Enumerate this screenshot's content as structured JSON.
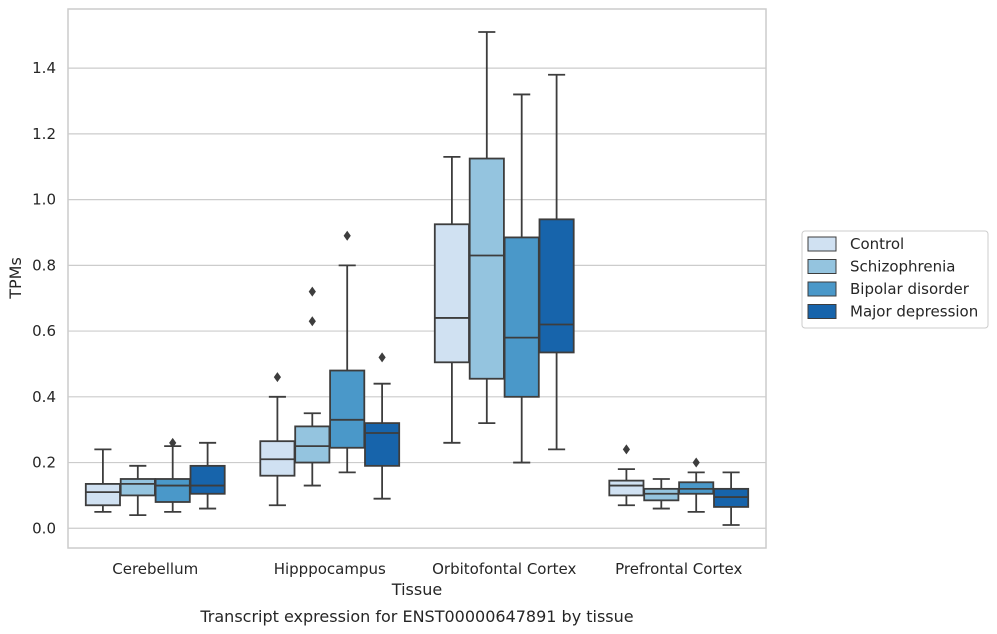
{
  "chart_data": {
    "type": "box",
    "caption": "Transcript expression for ENST00000647891 by tissue",
    "xlabel": "Tissue",
    "ylabel": "TPMs",
    "ylim": [
      -0.06,
      1.58
    ],
    "yticks": [
      0.0,
      0.2,
      0.4,
      0.6,
      0.8,
      1.0,
      1.2,
      1.4
    ],
    "ytick_labels": [
      "0.0",
      "0.2",
      "0.4",
      "0.6",
      "0.8",
      "1.0",
      "1.2",
      "1.4"
    ],
    "grid": true,
    "legend_position": "right",
    "categories": [
      "Cerebellum",
      "Hipppocampus",
      "Orbitofontal Cortex",
      "Prefrontal Cortex"
    ],
    "series": [
      {
        "name": "Control",
        "color": "#d0e1f2",
        "boxes": [
          {
            "min": 0.05,
            "q1": 0.07,
            "median": 0.11,
            "q3": 0.135,
            "max": 0.24,
            "outliers": []
          },
          {
            "min": 0.07,
            "q1": 0.16,
            "median": 0.21,
            "q3": 0.265,
            "max": 0.4,
            "outliers": [
              0.46
            ]
          },
          {
            "min": 0.26,
            "q1": 0.505,
            "median": 0.64,
            "q3": 0.925,
            "max": 1.13,
            "outliers": []
          },
          {
            "min": 0.07,
            "q1": 0.1,
            "median": 0.13,
            "q3": 0.145,
            "max": 0.18,
            "outliers": [
              0.24
            ]
          }
        ]
      },
      {
        "name": "Schizophrenia",
        "color": "#94c4df",
        "boxes": [
          {
            "min": 0.04,
            "q1": 0.1,
            "median": 0.135,
            "q3": 0.15,
            "max": 0.19,
            "outliers": []
          },
          {
            "min": 0.13,
            "q1": 0.2,
            "median": 0.25,
            "q3": 0.31,
            "max": 0.35,
            "outliers": [
              0.63,
              0.72
            ]
          },
          {
            "min": 0.32,
            "q1": 0.455,
            "median": 0.83,
            "q3": 1.125,
            "max": 1.51,
            "outliers": []
          },
          {
            "min": 0.06,
            "q1": 0.085,
            "median": 0.105,
            "q3": 0.12,
            "max": 0.15,
            "outliers": []
          }
        ]
      },
      {
        "name": "Bipolar disorder",
        "color": "#4a98c9",
        "boxes": [
          {
            "min": 0.05,
            "q1": 0.08,
            "median": 0.13,
            "q3": 0.15,
            "max": 0.25,
            "outliers": [
              0.26
            ]
          },
          {
            "min": 0.17,
            "q1": 0.245,
            "median": 0.33,
            "q3": 0.48,
            "max": 0.8,
            "outliers": [
              0.89
            ]
          },
          {
            "min": 0.2,
            "q1": 0.4,
            "median": 0.58,
            "q3": 0.885,
            "max": 1.32,
            "outliers": []
          },
          {
            "min": 0.05,
            "q1": 0.105,
            "median": 0.12,
            "q3": 0.14,
            "max": 0.17,
            "outliers": [
              0.2
            ]
          }
        ]
      },
      {
        "name": "Major depression",
        "color": "#1764ab",
        "boxes": [
          {
            "min": 0.06,
            "q1": 0.105,
            "median": 0.13,
            "q3": 0.19,
            "max": 0.26,
            "outliers": []
          },
          {
            "min": 0.09,
            "q1": 0.19,
            "median": 0.29,
            "q3": 0.32,
            "max": 0.44,
            "outliers": [
              0.52
            ]
          },
          {
            "min": 0.24,
            "q1": 0.535,
            "median": 0.62,
            "q3": 0.94,
            "max": 1.38,
            "outliers": []
          },
          {
            "min": 0.01,
            "q1": 0.065,
            "median": 0.095,
            "q3": 0.12,
            "max": 0.17,
            "outliers": []
          }
        ]
      }
    ]
  }
}
